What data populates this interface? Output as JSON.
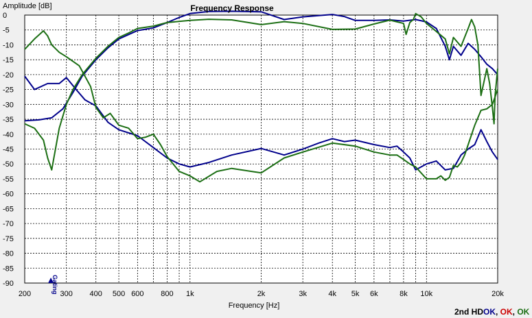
{
  "chart_data": {
    "type": "line",
    "title": "Frequency Response",
    "xlabel": "Frequency [Hz]",
    "ylabel": "Amplitude [dB]",
    "x_scale": "log",
    "xlim": [
      200,
      20000
    ],
    "ylim": [
      -90,
      0
    ],
    "grid": true,
    "x_ticks": [
      {
        "v": 200,
        "label": "200"
      },
      {
        "v": 300,
        "label": "300"
      },
      {
        "v": 400,
        "label": "400"
      },
      {
        "v": 500,
        "label": "500"
      },
      {
        "v": 600,
        "label": "600"
      },
      {
        "v": 800,
        "label": "800"
      },
      {
        "v": 1000,
        "label": "1k"
      },
      {
        "v": 2000,
        "label": "2k"
      },
      {
        "v": 3000,
        "label": "3k"
      },
      {
        "v": 4000,
        "label": "4k"
      },
      {
        "v": 5000,
        "label": "5k"
      },
      {
        "v": 6000,
        "label": "6k"
      },
      {
        "v": 8000,
        "label": "8k"
      },
      {
        "v": 10000,
        "label": "10k"
      },
      {
        "v": 20000,
        "label": "20k"
      }
    ],
    "x_minor_grid": [
      700,
      900,
      7000,
      9000
    ],
    "y_ticks": [
      0,
      -5,
      -10,
      -15,
      -20,
      -25,
      -30,
      -35,
      -40,
      -45,
      -50,
      -55,
      -60,
      -65,
      -70,
      -75,
      -80,
      -85,
      -90
    ],
    "marker": {
      "label": "Gating",
      "x": 258,
      "color": "#00008b"
    },
    "series": [
      {
        "color": "#00008b",
        "x": [
          200,
          230,
          260,
          290,
          320,
          350,
          400,
          450,
          500,
          600,
          700,
          800,
          900,
          1000,
          1200,
          1500,
          2000,
          2500,
          3000,
          4000,
          4500,
          5000,
          6000,
          7000,
          8000,
          9000,
          10000,
          11000,
          12000,
          12500,
          13000,
          14000,
          15000,
          16000,
          17000,
          18000,
          19000,
          20000
        ],
        "values": [
          -35.5,
          -35.2,
          -34.5,
          -31.5,
          -26,
          -20.5,
          -15,
          -11,
          -8,
          -5.2,
          -4.3,
          -2.5,
          -0.8,
          0.5,
          1.2,
          1.3,
          1.1,
          -1.5,
          -0.6,
          0.2,
          -0.5,
          -1.8,
          -1.8,
          -1.6,
          -2,
          -1.5,
          -2.3,
          -4.5,
          -10.5,
          -15,
          -10.5,
          -13.5,
          -9.5,
          -11.5,
          -14,
          -16.5,
          -18,
          -20
        ]
      },
      {
        "color": "#00008b",
        "x": [
          200,
          220,
          250,
          280,
          300,
          330,
          360,
          400,
          450,
          500,
          600,
          700,
          800,
          900,
          1000,
          1200,
          1500,
          2000,
          2500,
          3000,
          3500,
          4000,
          4500,
          5000,
          6000,
          7000,
          7500,
          8000,
          8500,
          9000,
          10000,
          11000,
          12000,
          13000,
          14000,
          15000,
          16000,
          17000,
          18000,
          19000,
          20000
        ],
        "values": [
          -20.5,
          -25,
          -23,
          -23,
          -21,
          -25,
          -28.5,
          -30.5,
          -36,
          -38.5,
          -40.5,
          -44.5,
          -48,
          -50,
          -51,
          -49.5,
          -47,
          -44.8,
          -47,
          -45,
          -43,
          -41.5,
          -42.5,
          -42,
          -43.5,
          -44.5,
          -44,
          -46,
          -48,
          -52,
          -50,
          -49,
          -52,
          -51.5,
          -47,
          -45,
          -43.5,
          -38.5,
          -42.5,
          -46,
          -48.5
        ]
      },
      {
        "color": "#1b6e13",
        "x": [
          200,
          220,
          240,
          250,
          260,
          280,
          300,
          340,
          380,
          400,
          430,
          460,
          500,
          550,
          600,
          650,
          700,
          750,
          800,
          900,
          1000,
          1100,
          1300,
          1500,
          2000,
          2500,
          3000,
          4000,
          5000,
          6000,
          7000,
          7500,
          8000,
          8500,
          9000,
          10000,
          11000,
          11500,
          12000,
          12500,
          13000,
          13500,
          14000,
          14500,
          15000,
          16000,
          17000,
          18000,
          19000,
          20000
        ],
        "values": [
          -11.5,
          -8,
          -5.3,
          -7,
          -10,
          -12.5,
          -14,
          -17,
          -24,
          -31,
          -34.5,
          -33,
          -37,
          -38,
          -41.5,
          -41,
          -40,
          -43.5,
          -47.5,
          -52.5,
          -54,
          -56,
          -52.5,
          -51.5,
          -53,
          -48,
          -46,
          -43,
          -44,
          -46,
          -47,
          -47,
          -48.5,
          -50,
          -51,
          -55,
          -55,
          -54,
          -55.5,
          -54.5,
          -50.5,
          -51,
          -49.5,
          -47,
          -43.5,
          -37,
          -32,
          -31.5,
          -30,
          -25
        ]
      },
      {
        "color": "#1b6e13",
        "x": [
          200,
          220,
          240,
          250,
          260,
          280,
          300,
          320,
          350,
          400,
          450,
          500,
          550,
          600,
          700,
          800,
          1000,
          1200,
          1500,
          2000,
          2500,
          3000,
          4000,
          5000,
          6000,
          7000,
          8000,
          8200,
          8500,
          8800,
          9000,
          9500,
          10000,
          11000,
          12000,
          12500,
          13000,
          14000,
          15000,
          15500,
          16000,
          16500,
          17000,
          18000,
          18500,
          19000,
          19300,
          19500,
          20000
        ],
        "values": [
          -36.5,
          -38,
          -42,
          -48,
          -52,
          -38,
          -30,
          -25,
          -20,
          -14.5,
          -10.5,
          -7.5,
          -6,
          -4.5,
          -3.7,
          -2.5,
          -1.8,
          -1.4,
          -1.6,
          -3.2,
          -2.2,
          -2.8,
          -4.8,
          -4.7,
          -3,
          -1.7,
          -2.8,
          -6.5,
          -2.5,
          -1.5,
          0.5,
          -0.6,
          -2.8,
          -5.5,
          -8,
          -13,
          -7.5,
          -10.5,
          -4.5,
          -1.5,
          -4,
          -10,
          -27,
          -18,
          -23,
          -31,
          -36.5,
          -27,
          -18
        ]
      }
    ],
    "status": {
      "prefix": "2nd HD",
      "parts": [
        {
          "text": "OK",
          "color": "#00008b"
        },
        {
          "text": ", ",
          "color": "#000000"
        },
        {
          "text": "OK",
          "color": "#cc0000"
        },
        {
          "text": ", ",
          "color": "#000000"
        },
        {
          "text": "OK",
          "color": "#1b6e13"
        }
      ]
    }
  }
}
